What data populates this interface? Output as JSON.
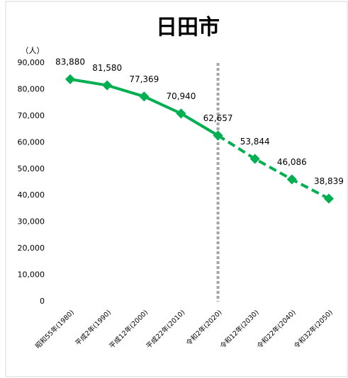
{
  "chart_data": {
    "type": "line",
    "title": "日田市",
    "y_unit_label": "（人）",
    "categories": [
      "昭和55年(1980)",
      "平成2年(1990)",
      "平成12年(2000)",
      "平成22年(2010)",
      "令和2年(2020)",
      "令和12年(2030)",
      "令和22年(2040)",
      "令和32年(2050)"
    ],
    "values": [
      83880,
      81580,
      77369,
      70940,
      62657,
      53844,
      46086,
      38839
    ],
    "value_labels": [
      "83,880",
      "81,580",
      "77,369",
      "70,940",
      "62,657",
      "53,844",
      "46,086",
      "38,839"
    ],
    "color": "#00b050",
    "dashed_from": "令和2年(2020)",
    "reference_line_at": "令和2年(2020)",
    "reference_line_color": "#a6a6a6",
    "ylim": [
      0,
      90000
    ],
    "yticks": [
      0,
      {
        "value": 10000,
        "label": "10,000"
      },
      {
        "value": 20000,
        "label": "20,000"
      },
      {
        "value": 30000,
        "label": "30,000"
      },
      {
        "value": 40000,
        "label": "40,000"
      },
      {
        "value": 50000,
        "label": "50,000"
      },
      {
        "value": 60000,
        "label": "60,000"
      },
      {
        "value": 70000,
        "label": "70,000"
      },
      {
        "value": 80000,
        "label": "80,000"
      },
      {
        "value": 90000,
        "label": "90,000"
      }
    ],
    "grid": false
  }
}
